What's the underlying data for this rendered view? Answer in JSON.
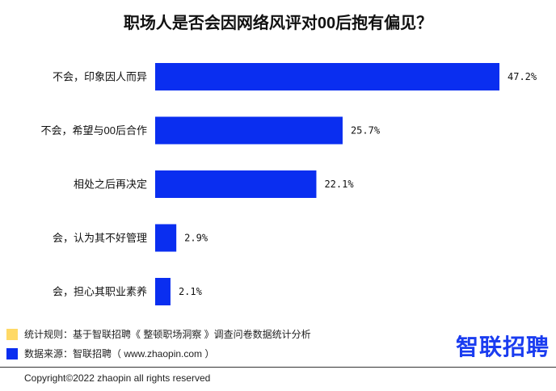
{
  "colors": {
    "bar": "#0a2ef0",
    "note_yellow": "#ffd966",
    "note_blue": "#0a2ef0",
    "logo": "#1a3cf0"
  },
  "chart_data": {
    "type": "bar",
    "orientation": "horizontal",
    "title": "职场人是否会因网络风评对00后抱有偏见？",
    "categories": [
      "不会，印象因人而异",
      "不会，希望与00后合作",
      "相处之后再决定",
      "会，认为其不好管理",
      "会，担心其职业素养"
    ],
    "values": [
      47.2,
      25.7,
      22.1,
      2.9,
      2.1
    ],
    "value_labels": [
      "47.2%",
      "25.7%",
      "22.1%",
      "2.9%",
      "2.1%"
    ],
    "xlim": [
      0,
      47.2
    ],
    "grid": false,
    "legend": "none"
  },
  "footer": {
    "note_rule": "统计规则：基于智联招聘《 整顿职场洞察 》调查问卷数据统计分析",
    "note_source": "数据来源：智联招聘（ www.zhaopin.com ）",
    "logo_text": "智联招聘",
    "copyright": "Copyright©2022 zhaopin all rights reserved"
  }
}
